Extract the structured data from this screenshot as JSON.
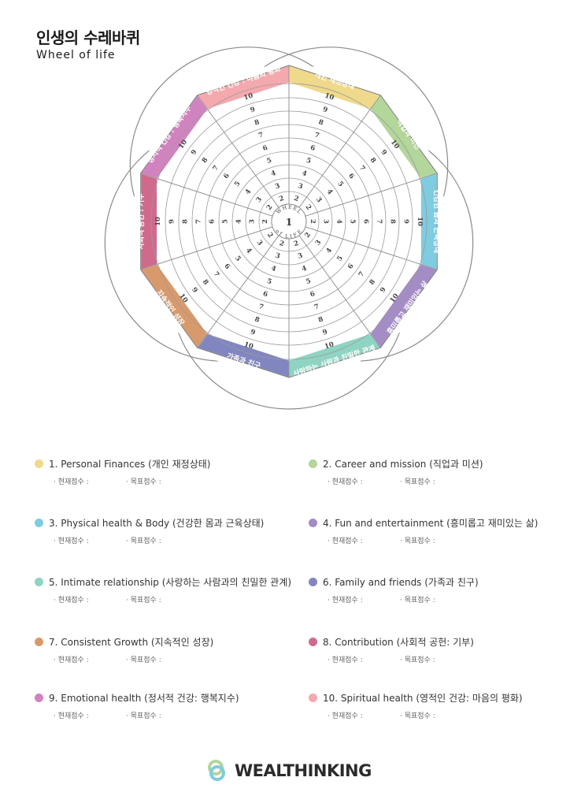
{
  "title": {
    "ko": "인생의 수레바퀴",
    "en": "Wheel of life"
  },
  "wheel": {
    "center_top": "WHEEL",
    "center_number": "1",
    "center_bottom": "of LIFE",
    "scale": [
      2,
      3,
      4,
      5,
      6,
      7,
      8,
      9,
      10
    ],
    "segments": [
      {
        "label": "개인 재정상태",
        "color": "#efd98a"
      },
      {
        "label": "직업과 미션",
        "color": "#b3d69a"
      },
      {
        "label": "건강한 몸과 근육상태",
        "color": "#7fcbe0"
      },
      {
        "label": "흥미롭고 재미있는 삶",
        "color": "#a48cc6"
      },
      {
        "label": "사랑하는 사람과 친밀한 관계",
        "color": "#8fd3c3"
      },
      {
        "label": "가족과 친구",
        "color": "#8286c0"
      },
      {
        "label": "지속적인 성장",
        "color": "#d89a6c"
      },
      {
        "label": "사회적 공헌 : 기부",
        "color": "#d06a8c"
      },
      {
        "label": "정서적 건강 : 행복지수",
        "color": "#d183c0"
      },
      {
        "label": "영적인 건강 : 마음의 평화",
        "color": "#f4a9ae"
      }
    ]
  },
  "legend": {
    "current_label": "· 현재점수 :",
    "target_label": "· 목표점수 :",
    "items": [
      {
        "label": "1. Personal Finances (개인 재정상태)",
        "color": "#efd98a"
      },
      {
        "label": "2. Career and mission (직업과 미션)",
        "color": "#b3d69a"
      },
      {
        "label": "3. Physical health & Body (건강한 몸과 근육상태)",
        "color": "#7fcbe0"
      },
      {
        "label": "4. Fun and entertainment (흥미롭고 재미있는 삶)",
        "color": "#a48cc6"
      },
      {
        "label": "5. Intimate relationship (사랑하는 사람과의 친밀한 관계)",
        "color": "#8fd3c3"
      },
      {
        "label": "6. Family and friends (가족과 친구)",
        "color": "#8286c0"
      },
      {
        "label": "7. Consistent Growth (지속적인 성장)",
        "color": "#d89a6c"
      },
      {
        "label": "8. Contribution (사회적 공헌: 기부)",
        "color": "#d06a8c"
      },
      {
        "label": "9. Emotional health (정서적 건강: 행복지수)",
        "color": "#d183c0"
      },
      {
        "label": "10. Spiritual health (영적인 건강: 마음의 평화)",
        "color": "#f4a9ae"
      }
    ]
  },
  "brand": {
    "name": "WEALTHINKING",
    "logo_colors": [
      "#7fcbe0",
      "#b3d69a"
    ]
  }
}
